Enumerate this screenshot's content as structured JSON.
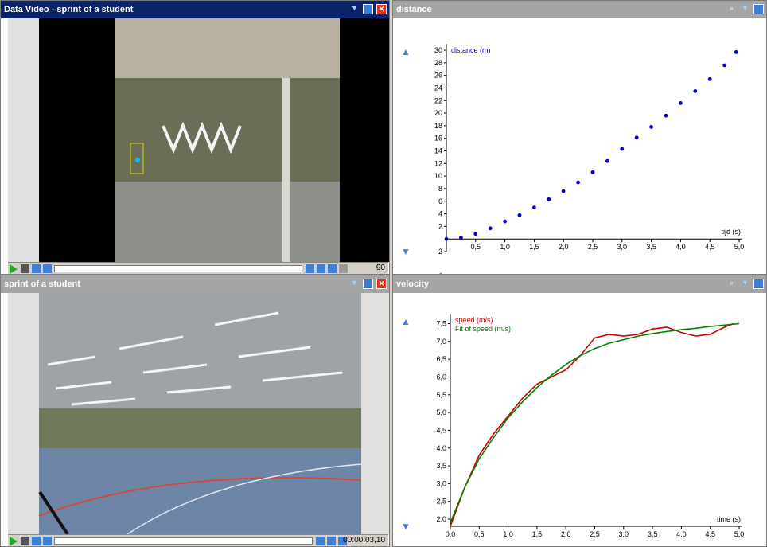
{
  "windows": {
    "data_video": {
      "title": "Data Video - sprint of a student",
      "frame_number": "90",
      "icons": [
        "chevron-down-icon",
        "maximize-icon",
        "close-icon"
      ]
    },
    "video": {
      "title": "sprint of a student",
      "timestamp": "00:00:03,10",
      "icons": [
        "chevron-down-icon",
        "maximize-icon",
        "close-icon"
      ]
    },
    "distance_graph": {
      "title": "distance",
      "icons": [
        "magnifier-icon",
        "chevron-down-icon",
        "maximize-icon"
      ]
    },
    "velocity_graph": {
      "title": "velocity",
      "icons": [
        "magnifier-icon",
        "chevron-down-icon",
        "maximize-icon"
      ]
    }
  },
  "colors": {
    "active_title": "#0a246a",
    "inactive_title": "#a5a5a5",
    "distance_points": "#0000cc",
    "speed": "#cc0000",
    "fit": "#008000"
  },
  "chart_data": [
    {
      "type": "scatter",
      "title": "distance",
      "ylabel": "distance (m)",
      "xlabel": "tijd (s)",
      "xlim": [
        0,
        5.0
      ],
      "ylim": [
        -2,
        30
      ],
      "xticks": [
        "0,5",
        "1,0",
        "1,5",
        "2,0",
        "2,5",
        "3,0",
        "3,5",
        "4,0",
        "4,5",
        "5,0"
      ],
      "yticks": [
        "-2",
        "2",
        "4",
        "6",
        "8",
        "10",
        "12",
        "14",
        "16",
        "18",
        "20",
        "22",
        "24",
        "26",
        "28",
        "30"
      ],
      "series": [
        {
          "name": "distance (m)",
          "x": [
            0,
            0.25,
            0.5,
            0.75,
            1.0,
            1.25,
            1.5,
            1.75,
            2.0,
            2.25,
            2.5,
            2.75,
            3.0,
            3.25,
            3.5,
            3.75,
            4.0,
            4.25,
            4.5,
            4.75,
            4.95
          ],
          "y": [
            0,
            0.2,
            0.8,
            1.7,
            2.8,
            3.8,
            5.0,
            6.3,
            7.6,
            9.0,
            10.6,
            12.4,
            14.3,
            16.1,
            17.8,
            19.6,
            21.6,
            23.5,
            25.4,
            27.6,
            29.7
          ]
        }
      ]
    },
    {
      "type": "line",
      "title": "velocity",
      "xlabel": "time (s)",
      "xlim": [
        0,
        5.0
      ],
      "ylim": [
        1.8,
        7.6
      ],
      "xticks": [
        "0,0",
        "0,5",
        "1,0",
        "1,5",
        "2,0",
        "2,5",
        "3,0",
        "3,5",
        "4,0",
        "4,5",
        "5,0"
      ],
      "yticks": [
        "2,0",
        "2,5",
        "3,0",
        "3,5",
        "4,0",
        "4,5",
        "5,0",
        "5,5",
        "6,0",
        "6,5",
        "7,0",
        "7,5"
      ],
      "series": [
        {
          "name": "speed (m/s)",
          "x": [
            0,
            0.25,
            0.5,
            0.75,
            1.0,
            1.25,
            1.5,
            1.75,
            2.0,
            2.25,
            2.5,
            2.75,
            3.0,
            3.25,
            3.5,
            3.75,
            4.0,
            4.25,
            4.5,
            4.75,
            4.9
          ],
          "y": [
            1.8,
            2.9,
            3.8,
            4.4,
            4.9,
            5.4,
            5.8,
            6.0,
            6.2,
            6.6,
            7.1,
            7.2,
            7.15,
            7.2,
            7.35,
            7.4,
            7.25,
            7.15,
            7.2,
            7.4,
            7.5
          ]
        },
        {
          "name": "Fit of speed (m/s)",
          "x": [
            0,
            0.25,
            0.5,
            0.75,
            1.0,
            1.25,
            1.5,
            1.75,
            2.0,
            2.25,
            2.5,
            2.75,
            3.0,
            3.25,
            3.5,
            3.75,
            4.0,
            4.25,
            4.5,
            4.75,
            5.0
          ],
          "y": [
            1.9,
            2.9,
            3.7,
            4.3,
            4.85,
            5.3,
            5.7,
            6.05,
            6.35,
            6.6,
            6.8,
            6.95,
            7.05,
            7.15,
            7.22,
            7.28,
            7.33,
            7.37,
            7.42,
            7.46,
            7.5
          ]
        }
      ]
    }
  ]
}
